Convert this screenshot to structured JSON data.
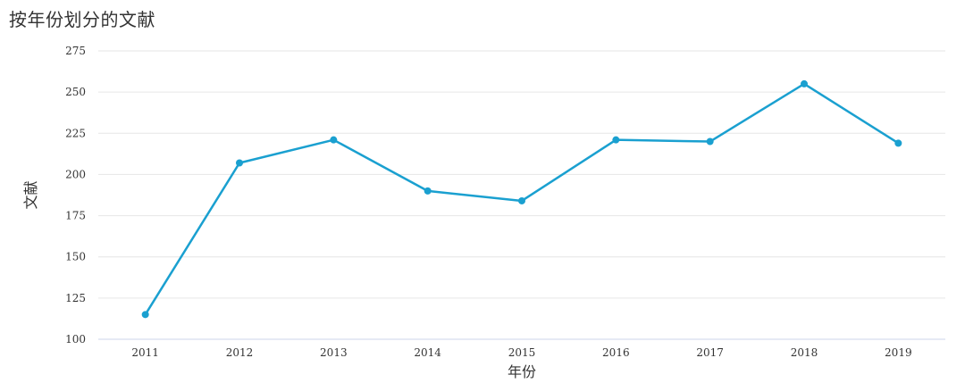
{
  "chart_data": {
    "type": "line",
    "title": "按年份划分的文献",
    "xlabel": "年份",
    "ylabel": "文献",
    "categories": [
      "2011",
      "2012",
      "2013",
      "2014",
      "2015",
      "2016",
      "2017",
      "2018",
      "2019"
    ],
    "series": [
      {
        "values": [
          115,
          207,
          221,
          190,
          184,
          221,
          220,
          255,
          219
        ]
      }
    ],
    "ylim": [
      100,
      275
    ],
    "yticks": [
      100,
      125,
      150,
      175,
      200,
      225,
      250,
      275
    ],
    "grid": true,
    "legend": "none",
    "colors": {
      "line": "#1aa0d0",
      "grid": "#e6e6e6",
      "axis": "#ccd6eb"
    }
  }
}
